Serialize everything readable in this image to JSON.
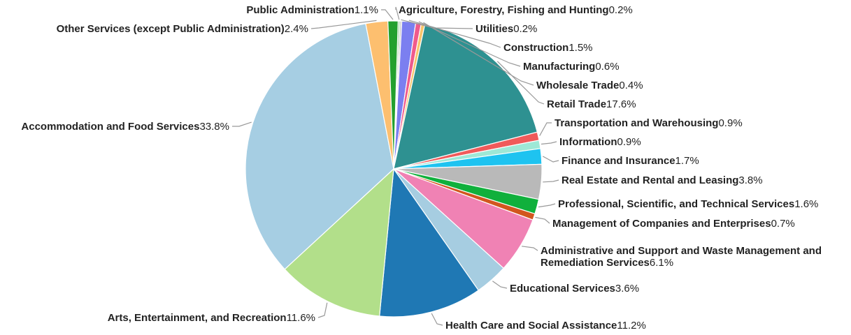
{
  "chart_data": {
    "type": "pie",
    "title": "",
    "unit": "%",
    "slices": [
      {
        "label": "Agriculture, Forestry, Fishing and Hunting",
        "value": 0.2,
        "color": "#9ad39a"
      },
      {
        "label": "Utilities",
        "value": 0.2,
        "color": "#c8c8c8"
      },
      {
        "label": "Construction",
        "value": 1.5,
        "color": "#7b7ff0"
      },
      {
        "label": "Manufacturing",
        "value": 0.6,
        "color": "#f05a8c"
      },
      {
        "label": "Wholesale Trade",
        "value": 0.4,
        "color": "#f9c46b"
      },
      {
        "label": "Retail Trade",
        "value": 17.6,
        "color": "#2e9191"
      },
      {
        "label": "Transportation and Warehousing",
        "value": 0.9,
        "color": "#f05a5a"
      },
      {
        "label": "Information",
        "value": 0.9,
        "color": "#9ee8d6"
      },
      {
        "label": "Finance and Insurance",
        "value": 1.7,
        "color": "#1ec3f0"
      },
      {
        "label": "Real Estate and Rental and Leasing",
        "value": 3.8,
        "color": "#b9b9b9"
      },
      {
        "label": "Professional, Scientific, and Technical Services",
        "value": 1.6,
        "color": "#10b03c"
      },
      {
        "label": "Management of Companies and Enterprises",
        "value": 0.7,
        "color": "#d2561e"
      },
      {
        "label": "Administrative and Support and Waste Management and Remediation Services",
        "value": 6.1,
        "color": "#f082b4"
      },
      {
        "label": "Educational Services",
        "value": 3.6,
        "color": "#a6cde1"
      },
      {
        "label": "Health Care and Social Assistance",
        "value": 11.2,
        "color": "#1f78b4"
      },
      {
        "label": "Arts, Entertainment, and Recreation",
        "value": 11.6,
        "color": "#b2df8a"
      },
      {
        "label": "Accommodation and Food Services",
        "value": 33.8,
        "color": "#a6cee3"
      },
      {
        "label": "Other Services (except Public Administration)",
        "value": 2.4,
        "color": "#fdbf6f"
      },
      {
        "label": "Public Administration",
        "value": 1.1,
        "color": "#23a02e"
      }
    ],
    "label_lines": {
      "Administrative and Support and Waste Management and Remediation Services": [
        "Administrative and Support and Waste Management and",
        "Remediation Services"
      ]
    },
    "percent_labels": [
      "0.2%",
      "0.2%",
      "1.5%",
      "0.6%",
      "0.4%",
      "17.6%",
      "0.9%",
      "0.9%",
      "1.7%",
      "3.8%",
      "1.6%",
      "0.7%",
      "6.1%",
      "3.6%",
      "11.2%",
      "11.6%",
      "33.8%",
      "2.4%",
      "1.1%"
    ]
  }
}
